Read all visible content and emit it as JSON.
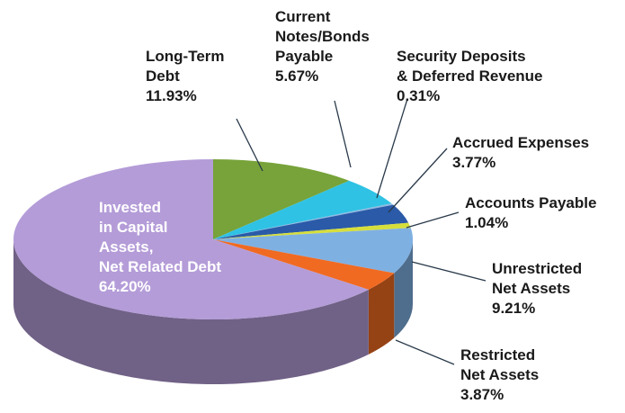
{
  "chart_data": {
    "type": "pie",
    "categories": [
      "Long-Term\nDebt",
      "Current\nNotes/Bonds\nPayable",
      "Security Deposits\n& Deferred Revenue",
      "Accrued Expenses",
      "Accounts Payable",
      "Unrestricted\nNet Assets",
      "Restricted\nNet Assets",
      "Invested\nin Capital\nAssets,\nNet Related Debt"
    ],
    "values": [
      11.93,
      5.67,
      0.31,
      3.77,
      1.04,
      9.21,
      3.87,
      64.2
    ],
    "value_labels": [
      "11.93%",
      "5.67%",
      "0.31%",
      "3.77%",
      "1.04%",
      "9.21%",
      "3.87%",
      "64.20%"
    ],
    "colors": [
      "#77a33a",
      "#2fc2e4",
      "#8fb8e0",
      "#2a5aa8",
      "#d6de3c",
      "#7fb0e2",
      "#f06a22",
      "#b49cd8"
    ]
  }
}
